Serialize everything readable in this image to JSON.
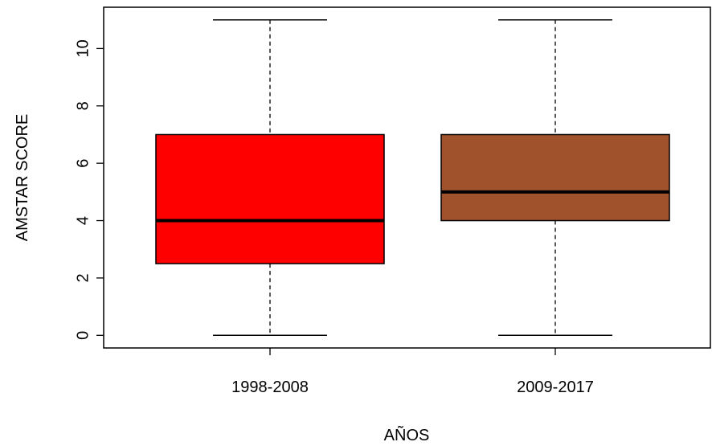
{
  "chart_data": {
    "type": "boxplot",
    "title": "",
    "xlabel": "AÑOS",
    "ylabel": "AMSTAR SCORE",
    "ylim": [
      -0.44,
      11.44
    ],
    "yticks": [
      0,
      2,
      4,
      6,
      8,
      10
    ],
    "categories": [
      "1998-2008",
      "2009-2017"
    ],
    "boxes": [
      {
        "category": "1998-2008",
        "min": 0,
        "q1": 2.5,
        "median": 4,
        "q3": 7,
        "max": 11,
        "color": "#ff0000"
      },
      {
        "category": "2009-2017",
        "min": 0,
        "q1": 4,
        "median": 5,
        "q3": 7,
        "max": 11,
        "color": "#a0522d"
      }
    ],
    "grid": false,
    "legend": "none"
  }
}
